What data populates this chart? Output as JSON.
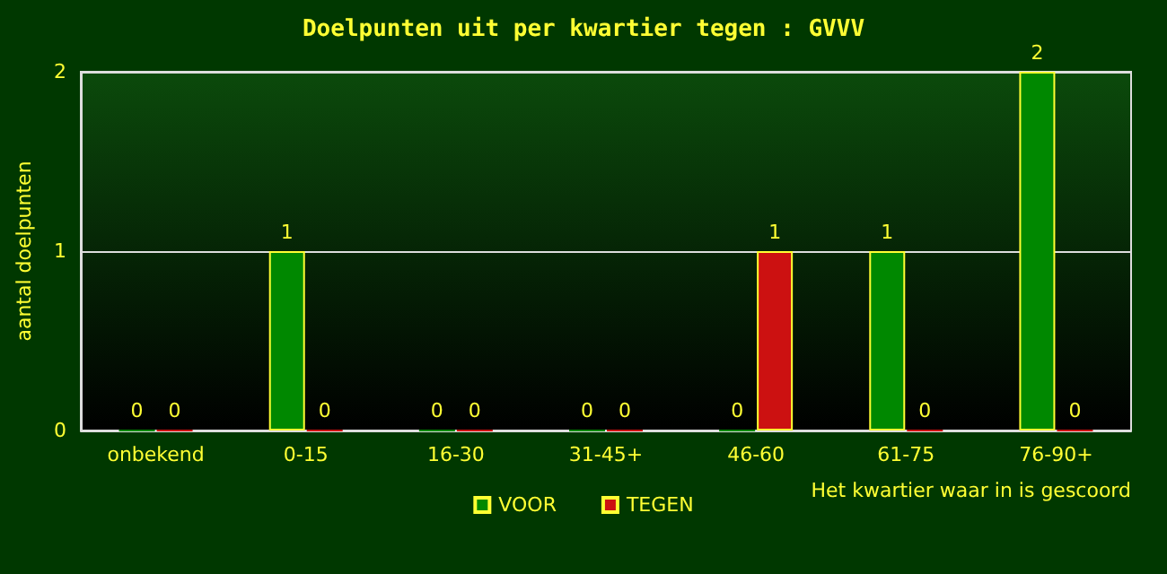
{
  "chart_data": {
    "type": "bar",
    "title": "Doelpunten uit per kwartier tegen : GVVV",
    "xlabel": "Het kwartier waar in is gescoord",
    "ylabel": "aantal doelpunten",
    "categories": [
      "onbekend",
      "0-15",
      "16-30",
      "31-45+",
      "46-60",
      "61-75",
      "76-90+"
    ],
    "series": [
      {
        "name": "VOOR",
        "color": "#008800",
        "values": [
          0,
          1,
          0,
          0,
          0,
          1,
          2
        ]
      },
      {
        "name": "TEGEN",
        "color": "#cc1111",
        "values": [
          0,
          0,
          0,
          0,
          1,
          0,
          0
        ]
      }
    ],
    "ylim": [
      0,
      2
    ],
    "yticks": [
      0,
      1,
      2
    ],
    "grid": "y",
    "legend": "bottom",
    "data_labels": true
  }
}
